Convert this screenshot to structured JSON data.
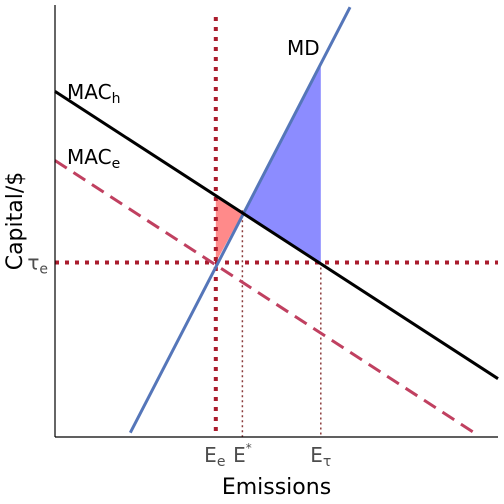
{
  "chart_data": {
    "type": "line",
    "title": "",
    "xlabel": "Emissions",
    "ylabel": "Capital/$",
    "xlim": [
      0,
      100
    ],
    "ylim": [
      0,
      100
    ],
    "grid": false,
    "axes": [
      "left",
      "bottom"
    ],
    "series": [
      {
        "name": "MD",
        "style": "solid",
        "color": "#5576b9",
        "label_sub": "",
        "x": [
          17,
          66.6
        ],
        "y": [
          1,
          99.5
        ]
      },
      {
        "name": "MAC",
        "label_sub": "h",
        "style": "solid",
        "color": "#000000",
        "x": [
          0,
          100
        ],
        "y": [
          80,
          13.5
        ]
      },
      {
        "name": "MAC",
        "label_sub": "e",
        "style": "dashed",
        "color": "#c04060",
        "x": [
          0,
          94.6
        ],
        "y": [
          64,
          1
        ]
      }
    ],
    "hline": {
      "y": 40.4,
      "color": "#aa1c2d",
      "style": "dotted"
    },
    "vlines": [
      {
        "x": 36.3,
        "style": "dotted-thick",
        "color": "#aa1c2d"
      },
      {
        "x": 42.3,
        "style": "dotted-thin",
        "color": "#8b3a3a",
        "y_top": 52.5
      },
      {
        "x": 60.0,
        "style": "dotted-thin",
        "color": "#8b3a3a",
        "y_top": 40.4
      }
    ],
    "shaded_regions": [
      {
        "color": "#ff8a8a",
        "vertices": [
          [
            36.3,
            55.8
          ],
          [
            42.3,
            51.8
          ],
          [
            36.3,
            40.4
          ]
        ]
      },
      {
        "color": "#8c8cff",
        "vertices": [
          [
            42.3,
            51.8
          ],
          [
            60.0,
            86.8
          ],
          [
            60.0,
            40.4
          ]
        ]
      }
    ],
    "x_ticks": [
      {
        "x": 36.3,
        "main": "E",
        "sub": "e",
        "sup": ""
      },
      {
        "x": 42.3,
        "main": "E",
        "sub": "",
        "sup": "*"
      },
      {
        "x": 60.0,
        "main": "E",
        "sub": "τ",
        "sup": ""
      }
    ],
    "y_ticks": [
      {
        "y": 40.4,
        "main": "τ",
        "sub": "e",
        "sup": ""
      }
    ]
  }
}
